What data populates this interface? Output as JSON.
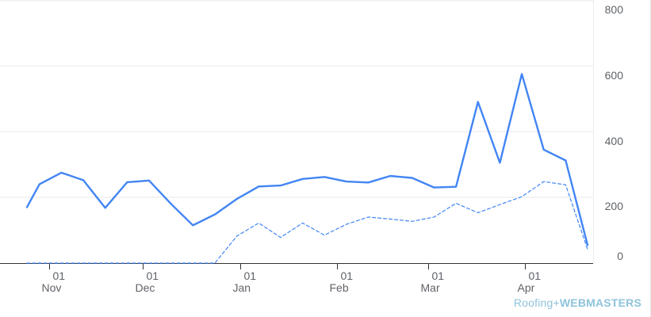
{
  "chart_data": {
    "type": "line",
    "title": "",
    "xlabel": "",
    "ylabel": "",
    "ylim": [
      0,
      800
    ],
    "yticks": [
      "0",
      "200",
      "400",
      "600",
      "800"
    ],
    "x_ticks": [
      {
        "day": "01",
        "month": "Nov",
        "date": "2019-11-01"
      },
      {
        "day": "01",
        "month": "Dec",
        "date": "2019-12-01"
      },
      {
        "day": "01",
        "month": "Jan",
        "date": "2020-01-01"
      },
      {
        "day": "01",
        "month": "Feb",
        "date": "2020-02-01"
      },
      {
        "day": "01",
        "month": "Mar",
        "date": "2020-03-01"
      },
      {
        "day": "01",
        "month": "Apr",
        "date": "2020-04-01"
      }
    ],
    "grid": "horizontal",
    "y_axis_position": "right",
    "series": [
      {
        "style": "solid",
        "color": "#4285f4",
        "x": [
          "2019-10-25",
          "2019-10-29",
          "2019-11-05",
          "2019-11-12",
          "2019-11-19",
          "2019-11-26",
          "2019-12-03",
          "2019-12-10",
          "2019-12-17",
          "2019-12-24",
          "2019-12-31",
          "2020-01-07",
          "2020-01-14",
          "2020-01-21",
          "2020-01-28",
          "2020-02-04",
          "2020-02-11",
          "2020-02-18",
          "2020-02-25",
          "2020-03-03",
          "2020-03-10",
          "2020-03-17",
          "2020-03-24",
          "2020-03-31",
          "2020-04-07",
          "2020-04-14",
          "2020-04-21"
        ],
        "values": [
          170,
          240,
          275,
          252,
          168,
          246,
          251,
          180,
          115,
          148,
          195,
          233,
          236,
          256,
          262,
          248,
          245,
          265,
          259,
          230,
          232,
          490,
          305,
          575,
          345,
          312,
          55
        ]
      },
      {
        "style": "dashed",
        "color": "#4285f4",
        "x": [
          "2019-10-25",
          "2019-11-01",
          "2019-11-08",
          "2019-11-15",
          "2019-11-22",
          "2019-11-29",
          "2019-12-06",
          "2019-12-13",
          "2019-12-20",
          "2019-12-24",
          "2019-12-31",
          "2020-01-07",
          "2020-01-14",
          "2020-01-21",
          "2020-01-28",
          "2020-02-04",
          "2020-02-11",
          "2020-02-18",
          "2020-02-25",
          "2020-03-03",
          "2020-03-10",
          "2020-03-17",
          "2020-03-24",
          "2020-03-31",
          "2020-04-07",
          "2020-04-14",
          "2020-04-21"
        ],
        "values": [
          0,
          0,
          0,
          0,
          0,
          0,
          0,
          0,
          0,
          0,
          82,
          122,
          78,
          122,
          85,
          118,
          140,
          134,
          127,
          140,
          182,
          153,
          178,
          202,
          248,
          238,
          42
        ]
      }
    ]
  },
  "watermark": {
    "part1": "Roofing",
    "plus": "+",
    "part2": "WEBMASTERS"
  }
}
